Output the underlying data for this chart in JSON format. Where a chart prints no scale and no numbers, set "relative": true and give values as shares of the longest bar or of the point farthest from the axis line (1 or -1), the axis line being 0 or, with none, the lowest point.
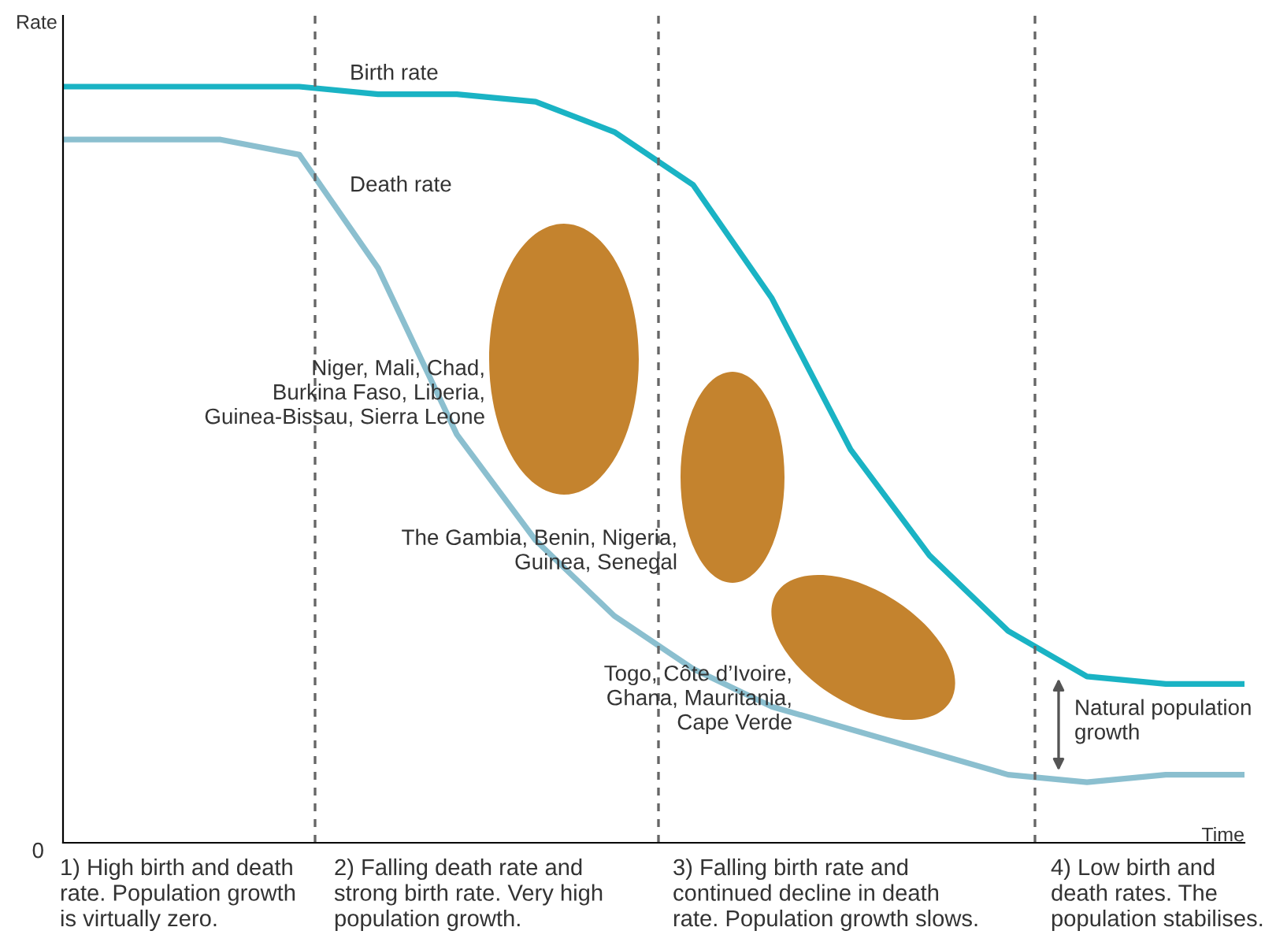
{
  "chart_data": {
    "type": "line",
    "relative": true,
    "ylabel": "Rate",
    "xlabel": "Time",
    "categories": [
      null,
      null,
      null,
      null,
      null,
      null,
      null,
      null,
      null,
      null,
      null,
      null,
      null,
      null,
      null,
      null
    ],
    "series": [
      {
        "name": "Birth rate",
        "color": "#1ab3c4",
        "values": [
          1.0,
          1.0,
          1.0,
          1.0,
          0.99,
          0.99,
          0.98,
          0.94,
          0.87,
          0.72,
          0.52,
          0.38,
          0.28,
          0.22,
          0.21,
          0.21
        ]
      },
      {
        "name": "Death rate",
        "color": "#8bbfcf",
        "values": [
          0.93,
          0.93,
          0.93,
          0.91,
          0.76,
          0.54,
          0.4,
          0.3,
          0.23,
          0.18,
          0.15,
          0.12,
          0.09,
          0.08,
          0.09,
          0.09
        ]
      }
    ],
    "annotations": [
      "0",
      "Niger, Mali, Chad,\nBurkina Faso, Liberia,\nGuinea-Bissau, Sierra Leone",
      "The Gambia, Benin, Nigeria,\nGuinea, Senegal",
      "Togo, Côte d’Ivoire,\nGhana, Mauritania,\nCape Verde",
      "Natural population\ngrowth",
      "1) High birth and death\nrate. Population growth\nis virtually zero.",
      "2) Falling death rate and\nstrong birth rate. Very high\npopulation growth.",
      "3) Falling birth rate and\ncontinued decline in death\nrate. Population growth slows.",
      "4) Low birth and\ndeath rates. The\npopulation stabilises."
    ],
    "legend": false,
    "grid": false
  }
}
